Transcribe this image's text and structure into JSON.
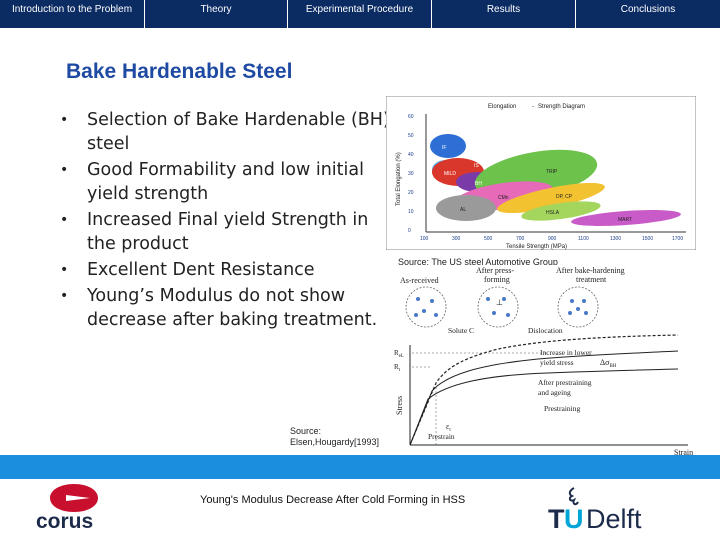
{
  "nav": {
    "tabs": [
      {
        "label": "Introduction to the Problem"
      },
      {
        "label": "Theory"
      },
      {
        "label": "Experimental Procedure"
      },
      {
        "label": "Results"
      },
      {
        "label": "Conclusions"
      }
    ]
  },
  "slide": {
    "title": "Bake Hardenable Steel",
    "bullets": [
      "Selection of Bake Hardenable (BH) steel",
      "Good Formability and low initial yield strength",
      "Increased Final yield Strength in the product",
      "Excellent Dent Resistance",
      "Young’s Modulus do not show decrease after baking treatment."
    ],
    "bullet_symbol": "•"
  },
  "figure_top": {
    "heading_left": "Elongation",
    "heading_sep": "-",
    "heading_right": "Strength Diagram",
    "y_label": "Total Elongation (%)",
    "x_label": "Tensile Strength (MPa)",
    "y_ticks": [
      "60",
      "50",
      "40",
      "30",
      "20",
      "10",
      "0"
    ],
    "x_ticks": [
      "100",
      "300",
      "500",
      "700",
      "900",
      "1100",
      "1300",
      "1500",
      "1700"
    ],
    "regions": [
      "IF",
      "IS",
      "MILD",
      "BH",
      "TRIP",
      "CMn",
      "HSLA",
      "DP, CP",
      "AL",
      "MART"
    ],
    "source": "Source: The US steel Automotive Group"
  },
  "figure_bottom": {
    "labels": {
      "as_received": "As-received",
      "after_press": "After press-",
      "forming": "forming",
      "after_bake": "After bake-hardening",
      "treatment": "treatment",
      "solute": "Solute C",
      "dislocation": "Dislocation",
      "increase1": "Increase in lower",
      "increase2": "yield stress",
      "delta": "Δσ",
      "delta_sub": "BH",
      "after_pre1": "After prestraining",
      "after_pre2": "and ageing",
      "prestraining": "Prestraining",
      "prestrain": "Prestrain",
      "stress": "Stress",
      "strain": "Strain",
      "rel": "R",
      "rel_sub": "eL",
      "rel2": "R",
      "rel2_sub": "t",
      "eps": "ε",
      "eps_sub": "t"
    },
    "source_line1": "Source:",
    "source_line2": "Elsen,Hougardy[1993]"
  },
  "footer": {
    "caption": "Young's Modulus Decrease After Cold Forming in HSS",
    "corus": "corus",
    "tud_t": "T",
    "tud_u": "U",
    "tud_rest": "Delft"
  },
  "colors": {
    "nav_bg": "#0b2b63",
    "title": "#1f4aa3",
    "band": "#1b8ede",
    "corus_red": "#c8102e",
    "corus_navy": "#1c2b4a",
    "tud_cyan": "#00a6d6"
  }
}
